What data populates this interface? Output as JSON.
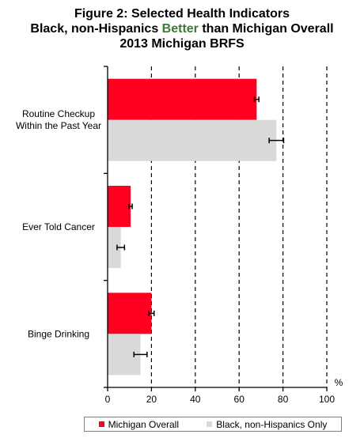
{
  "title": {
    "line1": "Figure 2: Selected Health Indicators",
    "line2_pre": "Black, non-Hispanics ",
    "line2_highlight": "Better",
    "line2_post": " than Michigan Overall",
    "line3": "2013 Michigan BRFS"
  },
  "colors": {
    "michigan_overall": "#ff0022",
    "black_non_hispanics": "#d9d9d9",
    "highlight_text": "#3a7a37"
  },
  "chart_data": {
    "type": "bar",
    "orientation": "horizontal",
    "categories": [
      [
        "Routine Checkup",
        "Within the Past Year"
      ],
      [
        "Ever Told Cancer"
      ],
      [
        "Binge Drinking"
      ]
    ],
    "series": [
      {
        "name": "Michigan Overall",
        "values": [
          68,
          10.5,
          20
        ],
        "error": [
          1,
          0.7,
          1.2
        ]
      },
      {
        "name": "Black, non-Hispanics Only",
        "values": [
          77,
          6,
          15
        ],
        "error": [
          3.3,
          1.7,
          3
        ]
      }
    ],
    "xlim": [
      0,
      100
    ],
    "xticks": [
      0,
      20,
      40,
      60,
      80,
      100
    ],
    "xtick_labels": [
      "0",
      "20",
      "40",
      "60",
      "80",
      "100"
    ],
    "xunit": "%",
    "grid": "vertical dashed",
    "legend_position": "bottom"
  }
}
